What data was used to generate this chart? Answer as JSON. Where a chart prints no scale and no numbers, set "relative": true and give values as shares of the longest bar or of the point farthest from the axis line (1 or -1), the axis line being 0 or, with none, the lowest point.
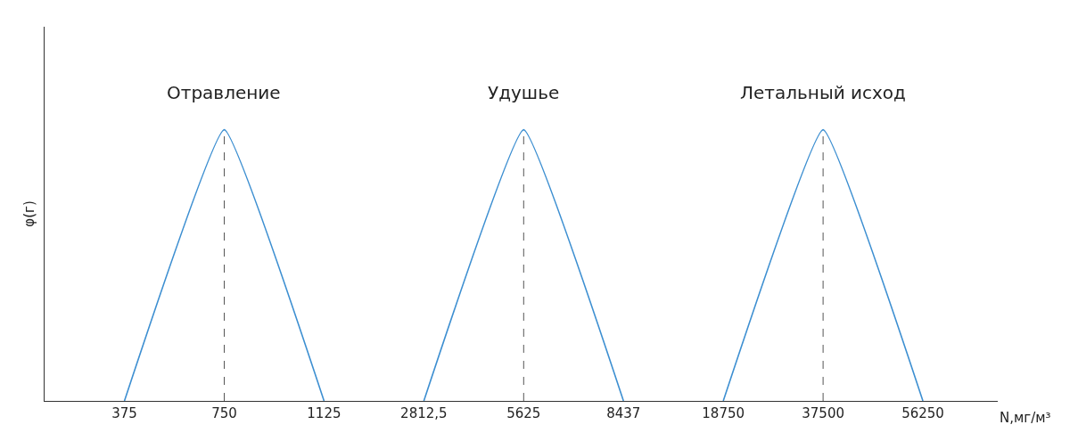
{
  "chart_data": {
    "type": "line",
    "relative": true,
    "xlabel": "N,мг/м³",
    "ylabel": "φ(г)",
    "categories": [
      "375",
      "750",
      "1125",
      "2812,5",
      "5625",
      "8437",
      "18750",
      "37500",
      "56250"
    ],
    "series": [
      {
        "name": "Отравление",
        "color": "#3d8fd1",
        "values": [
          0,
          1,
          0,
          null,
          null,
          null,
          null,
          null,
          null
        ]
      },
      {
        "name": "Удушье",
        "color": "#3d8fd1",
        "values": [
          null,
          null,
          null,
          0,
          1,
          0,
          null,
          null,
          null
        ]
      },
      {
        "name": "Летальный исход",
        "color": "#3d8fd1",
        "values": [
          null,
          null,
          null,
          null,
          null,
          null,
          0,
          1,
          0
        ]
      }
    ],
    "ref_lines": [
      {
        "axis": "x",
        "value": "750",
        "color": "#555555",
        "line_style": "dashed"
      },
      {
        "axis": "x",
        "value": "5625",
        "color": "#555555",
        "line_style": "dashed"
      },
      {
        "axis": "x",
        "value": "37500",
        "color": "#555555",
        "line_style": "dashed"
      }
    ],
    "grid": false,
    "legend": false,
    "marker": "none",
    "line_style": "solid"
  }
}
